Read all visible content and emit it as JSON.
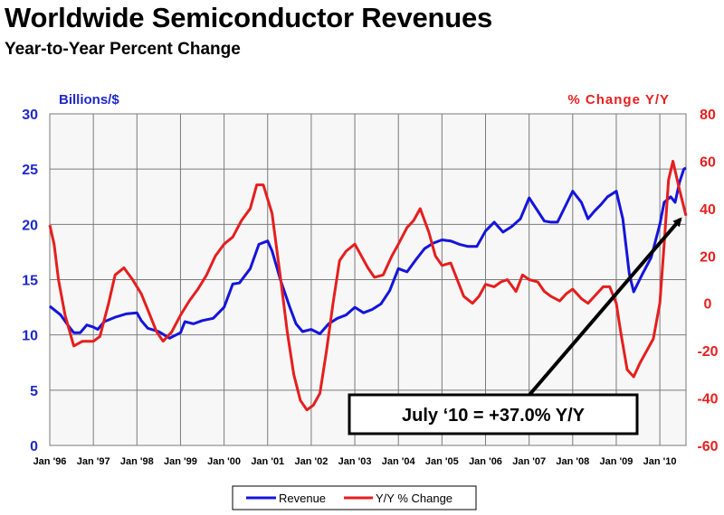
{
  "title": "Worldwide Semiconductor Revenues",
  "subtitle": "Year-to-Year Percent Change",
  "colors": {
    "revenue": "#1414dc",
    "yoy": "#e61e1e",
    "left_axis": "#1e28c8",
    "right_axis": "#e62020",
    "grid": "#7a7a7a",
    "plot_bg": "#f7f7f7"
  },
  "chart_data": {
    "type": "line",
    "left_axis": {
      "label": "Billions/$",
      "ylim": [
        0,
        30
      ],
      "ticks": [
        0,
        5,
        10,
        15,
        20,
        25,
        30
      ]
    },
    "right_axis": {
      "label": "% Change Y/Y",
      "ylim": [
        -60,
        80
      ],
      "ticks": [
        -60,
        -40,
        -20,
        0,
        20,
        40,
        60,
        80
      ]
    },
    "x_ticks": [
      "Jan '96",
      "Jan '97",
      "Jan '98",
      "Jan '99",
      "Jan '00",
      "Jan '01",
      "Jan '02",
      "Jan '03",
      "Jan '04",
      "Jan '05",
      "Jan '06",
      "Jan '07",
      "Jan '08",
      "Jan '09",
      "Jan '10"
    ],
    "x_range": [
      1996.0,
      2010.6
    ],
    "grid": true,
    "legend_position": "bottom",
    "series": [
      {
        "name": "Revenue",
        "axis": "left",
        "points": [
          [
            1996.0,
            12.6
          ],
          [
            1996.25,
            11.8
          ],
          [
            1996.45,
            10.7
          ],
          [
            1996.55,
            10.2
          ],
          [
            1996.7,
            10.2
          ],
          [
            1996.85,
            10.9
          ],
          [
            1997.0,
            10.7
          ],
          [
            1997.1,
            10.5
          ],
          [
            1997.25,
            11.2
          ],
          [
            1997.5,
            11.6
          ],
          [
            1997.75,
            11.9
          ],
          [
            1998.0,
            12.0
          ],
          [
            1998.1,
            11.3
          ],
          [
            1998.25,
            10.6
          ],
          [
            1998.5,
            10.3
          ],
          [
            1998.75,
            9.7
          ],
          [
            1999.0,
            10.2
          ],
          [
            1999.1,
            11.2
          ],
          [
            1999.3,
            11.0
          ],
          [
            1999.5,
            11.3
          ],
          [
            1999.75,
            11.5
          ],
          [
            2000.0,
            12.5
          ],
          [
            2000.2,
            14.6
          ],
          [
            2000.35,
            14.7
          ],
          [
            2000.6,
            16.0
          ],
          [
            2000.8,
            18.2
          ],
          [
            2001.0,
            18.5
          ],
          [
            2001.1,
            17.6
          ],
          [
            2001.3,
            14.9
          ],
          [
            2001.5,
            12.6
          ],
          [
            2001.65,
            11.0
          ],
          [
            2001.8,
            10.3
          ],
          [
            2002.0,
            10.5
          ],
          [
            2002.2,
            10.1
          ],
          [
            2002.4,
            11.0
          ],
          [
            2002.6,
            11.5
          ],
          [
            2002.8,
            11.8
          ],
          [
            2003.0,
            12.5
          ],
          [
            2003.2,
            12.0
          ],
          [
            2003.4,
            12.3
          ],
          [
            2003.6,
            12.8
          ],
          [
            2003.8,
            14.0
          ],
          [
            2004.0,
            16.0
          ],
          [
            2004.2,
            15.7
          ],
          [
            2004.4,
            16.8
          ],
          [
            2004.6,
            17.8
          ],
          [
            2004.8,
            18.3
          ],
          [
            2005.0,
            18.6
          ],
          [
            2005.2,
            18.5
          ],
          [
            2005.4,
            18.2
          ],
          [
            2005.6,
            18.0
          ],
          [
            2005.8,
            18.0
          ],
          [
            2006.0,
            19.4
          ],
          [
            2006.2,
            20.2
          ],
          [
            2006.4,
            19.3
          ],
          [
            2006.6,
            19.8
          ],
          [
            2006.8,
            20.5
          ],
          [
            2007.0,
            22.4
          ],
          [
            2007.15,
            21.5
          ],
          [
            2007.35,
            20.3
          ],
          [
            2007.5,
            20.2
          ],
          [
            2007.65,
            20.2
          ],
          [
            2007.75,
            21.0
          ],
          [
            2008.0,
            23.0
          ],
          [
            2008.2,
            22.0
          ],
          [
            2008.35,
            20.5
          ],
          [
            2008.5,
            21.2
          ],
          [
            2008.65,
            21.8
          ],
          [
            2008.8,
            22.5
          ],
          [
            2009.0,
            23.0
          ],
          [
            2009.15,
            20.5
          ],
          [
            2009.3,
            15.5
          ],
          [
            2009.4,
            13.9
          ],
          [
            2009.6,
            15.5
          ],
          [
            2009.8,
            17.0
          ],
          [
            2010.0,
            20.0
          ],
          [
            2010.1,
            22.0
          ],
          [
            2010.25,
            22.5
          ],
          [
            2010.35,
            22.0
          ],
          [
            2010.45,
            23.8
          ],
          [
            2010.55,
            25.0
          ],
          [
            2010.6,
            25.1
          ]
        ]
      },
      {
        "name": "Y/Y % Change",
        "axis": "right",
        "points": [
          [
            1996.0,
            33
          ],
          [
            1996.1,
            25
          ],
          [
            1996.2,
            10
          ],
          [
            1996.35,
            -5
          ],
          [
            1996.55,
            -18
          ],
          [
            1996.75,
            -16
          ],
          [
            1997.0,
            -16
          ],
          [
            1997.15,
            -14
          ],
          [
            1997.35,
            0
          ],
          [
            1997.5,
            12
          ],
          [
            1997.7,
            15
          ],
          [
            1997.9,
            10
          ],
          [
            1998.1,
            4
          ],
          [
            1998.3,
            -5
          ],
          [
            1998.45,
            -12
          ],
          [
            1998.6,
            -16
          ],
          [
            1998.8,
            -12
          ],
          [
            1999.0,
            -5
          ],
          [
            1999.2,
            1
          ],
          [
            1999.4,
            6
          ],
          [
            1999.6,
            12
          ],
          [
            1999.8,
            20
          ],
          [
            2000.0,
            25
          ],
          [
            2000.2,
            28
          ],
          [
            2000.4,
            35
          ],
          [
            2000.6,
            40
          ],
          [
            2000.75,
            50
          ],
          [
            2000.9,
            50
          ],
          [
            2001.1,
            38
          ],
          [
            2001.3,
            10
          ],
          [
            2001.45,
            -12
          ],
          [
            2001.6,
            -30
          ],
          [
            2001.75,
            -41
          ],
          [
            2001.9,
            -45
          ],
          [
            2002.05,
            -43
          ],
          [
            2002.2,
            -38
          ],
          [
            2002.35,
            -20
          ],
          [
            2002.5,
            0
          ],
          [
            2002.65,
            18
          ],
          [
            2002.8,
            22
          ],
          [
            2003.0,
            25
          ],
          [
            2003.15,
            20
          ],
          [
            2003.3,
            15
          ],
          [
            2003.45,
            11
          ],
          [
            2003.65,
            12
          ],
          [
            2003.85,
            20
          ],
          [
            2004.0,
            25
          ],
          [
            2004.2,
            32
          ],
          [
            2004.35,
            35
          ],
          [
            2004.5,
            40
          ],
          [
            2004.7,
            30
          ],
          [
            2004.85,
            20
          ],
          [
            2005.0,
            16
          ],
          [
            2005.2,
            17
          ],
          [
            2005.35,
            10
          ],
          [
            2005.5,
            3
          ],
          [
            2005.7,
            0
          ],
          [
            2005.85,
            3
          ],
          [
            2006.0,
            8
          ],
          [
            2006.2,
            7
          ],
          [
            2006.35,
            9
          ],
          [
            2006.5,
            10
          ],
          [
            2006.7,
            5
          ],
          [
            2006.85,
            12
          ],
          [
            2007.0,
            10
          ],
          [
            2007.2,
            9
          ],
          [
            2007.35,
            5
          ],
          [
            2007.5,
            3
          ],
          [
            2007.7,
            1
          ],
          [
            2007.85,
            4
          ],
          [
            2008.0,
            6
          ],
          [
            2008.2,
            2
          ],
          [
            2008.35,
            0
          ],
          [
            2008.5,
            3
          ],
          [
            2008.7,
            7
          ],
          [
            2008.85,
            7
          ],
          [
            2009.0,
            0
          ],
          [
            2009.1,
            -12
          ],
          [
            2009.25,
            -28
          ],
          [
            2009.4,
            -31
          ],
          [
            2009.55,
            -25
          ],
          [
            2009.7,
            -20
          ],
          [
            2009.85,
            -15
          ],
          [
            2010.0,
            0
          ],
          [
            2010.1,
            25
          ],
          [
            2010.2,
            52
          ],
          [
            2010.3,
            60
          ],
          [
            2010.45,
            48
          ],
          [
            2010.6,
            37
          ]
        ]
      }
    ],
    "annotation": {
      "text": "July ‘10 = +37.0% Y/Y",
      "points_to": [
        2010.55,
        37
      ]
    }
  }
}
